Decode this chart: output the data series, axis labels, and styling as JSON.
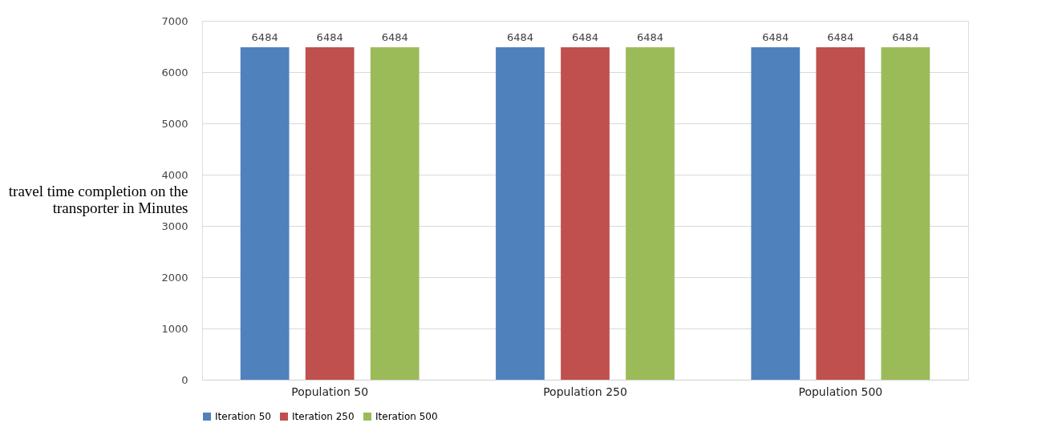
{
  "chart_data": {
    "type": "bar",
    "ylabel": "travel time completion on the transporter in Minutes",
    "categories": [
      "Population 50",
      "Population 250",
      "Population 500"
    ],
    "series": [
      {
        "name": "Iteration 50",
        "color": "#4f81bd",
        "values": [
          6484,
          6484,
          6484
        ]
      },
      {
        "name": "Iteration 250",
        "color": "#c0504d",
        "values": [
          6484,
          6484,
          6484
        ]
      },
      {
        "name": "Iteration 500",
        "color": "#9bbb59",
        "values": [
          6484,
          6484,
          6484
        ]
      }
    ],
    "ylim": [
      0,
      7000
    ],
    "yticks": [
      0,
      {
        "value": 1000,
        "label": "1000"
      },
      {
        "value": 2000,
        "label": "2000"
      },
      {
        "value": 3000,
        "label": "3000"
      },
      {
        "value": 4000,
        "label": "4000"
      },
      {
        "value": 5000,
        "label": "5000"
      },
      {
        "value": 6000,
        "label": "6000"
      },
      {
        "value": 7000,
        "label": "7000"
      }
    ],
    "grid": "y",
    "legend": "bottom",
    "data_labels": true
  }
}
